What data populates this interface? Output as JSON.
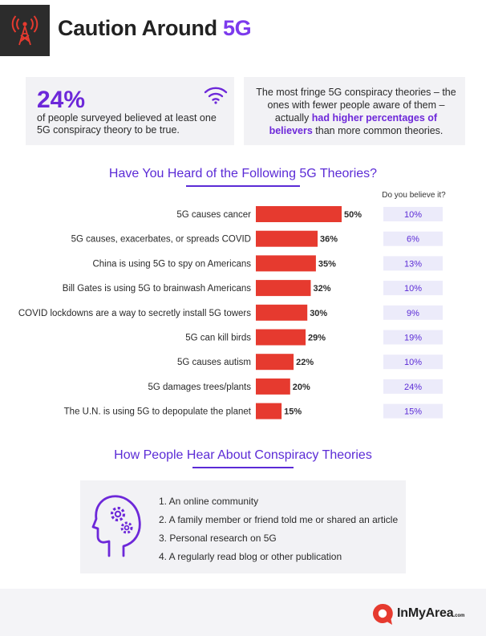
{
  "header": {
    "title_main": "Caution Around",
    "title_accent": "5G",
    "icon": "signal-tower-icon"
  },
  "stat_left": {
    "value": "24%",
    "text": "of people surveyed believed at least one 5G conspiracy theory to be true.",
    "icon": "wifi-icon"
  },
  "stat_right": {
    "text_before": "The most fringe 5G conspiracy theories – the ones with fewer people aware of them – actually",
    "highlight": "had higher percentages of believers",
    "text_after": "than more common theories."
  },
  "chart_data": {
    "type": "bar",
    "title": "Have You Heard of the Following 5G Theories?",
    "believe_header": "Do you believe it?",
    "categories": [
      "5G causes cancer",
      "5G causes, exacerbates, or spreads COVID",
      "China is using 5G to spy on Americans",
      "Bill Gates is using 5G to brainwash Americans",
      "COVID lockdowns are a way to secretly install 5G towers",
      "5G can kill birds",
      "5G causes autism",
      "5G damages trees/plants",
      "The U.N. is using 5G to depopulate the planet"
    ],
    "series": [
      {
        "values": [
          50,
          36,
          35,
          32,
          30,
          29,
          22,
          20,
          15
        ]
      },
      {
        "values": [
          10,
          6,
          13,
          10,
          9,
          19,
          10,
          24,
          15
        ]
      }
    ],
    "value_labels": [
      "50%",
      "36%",
      "35%",
      "32%",
      "30%",
      "29%",
      "22%",
      "20%",
      "15%"
    ],
    "believe_labels": [
      "10%",
      "6%",
      "13%",
      "10%",
      "9%",
      "19%",
      "10%",
      "24%",
      "15%"
    ],
    "bar_color": "#e63a2f",
    "believe_color": "#ecebfa",
    "xlim": [
      0,
      50
    ]
  },
  "sources": {
    "title": "How People Hear About Conspiracy Theories",
    "icon": "head-gears-icon",
    "items": [
      "1. An online community",
      "2. A family member or friend told me or shared an article",
      "3. Personal research on 5G",
      "4. A regularly read blog or other publication"
    ]
  },
  "footer": {
    "brand": "InMyArea",
    "brand_suffix": ".com",
    "logo_icon": "speech-bubble-logo-icon"
  },
  "colors": {
    "accent": "#6d28d9",
    "bar": "#e63a2f",
    "panel": "#f2f2f5"
  }
}
